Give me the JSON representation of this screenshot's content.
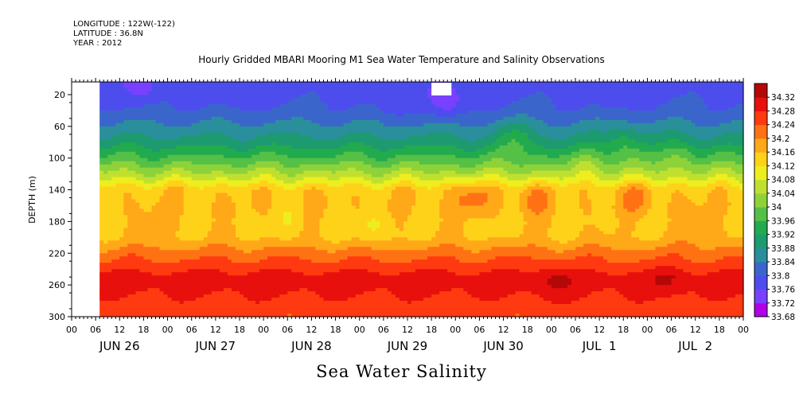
{
  "header": {
    "longitude": "LONGITUDE : 122W(-122)",
    "latitude": "LATITUDE : 36.8N",
    "year": "YEAR : 2012"
  },
  "chart_data": {
    "type": "heatmap",
    "title": "Hourly Gridded MBARI Mooring M1 Sea Water Temperature and Salinity Observations",
    "caption": "Sea Water Salinity",
    "ylabel": "DEPTH (m)",
    "ylim": [
      300,
      4
    ],
    "y_inverted": true,
    "y_ticks": [
      20,
      60,
      100,
      140,
      180,
      220,
      260,
      300
    ],
    "x_range_hours": [
      0,
      168
    ],
    "x_hour_ticks": [
      "00",
      "06",
      "12",
      "18",
      "00",
      "06",
      "12",
      "18",
      "00",
      "06",
      "12",
      "18",
      "00",
      "06",
      "12",
      "18",
      "00",
      "06",
      "12",
      "18",
      "00",
      "06",
      "12",
      "18",
      "00",
      "06",
      "12",
      "18",
      "00"
    ],
    "x_day_labels": [
      "JUN 26",
      "JUN 27",
      "JUN 28",
      "JUN 29",
      "JUN 30",
      "JUL  1",
      "JUL  2"
    ],
    "data_start_hour": 7,
    "missing_patch": {
      "hours": [
        90,
        95
      ],
      "depth": [
        4,
        20
      ]
    },
    "colorbar": {
      "levels": [
        33.68,
        33.72,
        33.76,
        33.8,
        33.84,
        33.88,
        33.92,
        33.96,
        34,
        34.04,
        34.08,
        34.12,
        34.16,
        34.2,
        34.24,
        34.28,
        34.32
      ],
      "level_labels": [
        "33.68",
        "33.72",
        "33.76",
        "33.8",
        "33.84",
        "33.88",
        "33.92",
        "33.96",
        "34",
        "34.04",
        "34.08",
        "34.12",
        "34.16",
        "34.2",
        "34.24",
        "34.28",
        "34.32"
      ],
      "colors": [
        "#b000e8",
        "#7a40ff",
        "#4d4dee",
        "#3a66cc",
        "#2a8f9c",
        "#1d9a70",
        "#22aa4e",
        "#55c046",
        "#8ed23a",
        "#c0e030",
        "#eeee1e",
        "#ffd21a",
        "#ffa818",
        "#ff7214",
        "#ff3a10",
        "#e8100c",
        "#b40808"
      ]
    },
    "depth_profile": {
      "depths": [
        4,
        20,
        40,
        60,
        80,
        100,
        120,
        130,
        140,
        160,
        180,
        200,
        220,
        240,
        250,
        260,
        280,
        300
      ],
      "salinity": [
        33.78,
        33.79,
        33.81,
        33.85,
        33.9,
        33.97,
        34.05,
        34.1,
        34.15,
        34.16,
        34.15,
        34.16,
        34.22,
        34.27,
        34.3,
        34.3,
        34.27,
        34.25
      ]
    },
    "anomalies": [
      {
        "hour": 94,
        "depth": 30,
        "delta": -0.07
      },
      {
        "hour": 80,
        "depth": 28,
        "delta": -0.04
      },
      {
        "hour": 18,
        "depth": 12,
        "delta": -0.04
      },
      {
        "hour": 40,
        "depth": 18,
        "delta": -0.03
      },
      {
        "hour": 135,
        "depth": 20,
        "delta": -0.03
      },
      {
        "hour": 111,
        "depth": 75,
        "delta": 0.06
      },
      {
        "hour": 138,
        "depth": 80,
        "delta": 0.05
      },
      {
        "hour": 152,
        "depth": 95,
        "delta": 0.04
      },
      {
        "hour": 130,
        "depth": 110,
        "delta": 0.04
      },
      {
        "hour": 100,
        "depth": 150,
        "delta": 0.06
      },
      {
        "hour": 115,
        "depth": 150,
        "delta": 0.05
      },
      {
        "hour": 142,
        "depth": 150,
        "delta": 0.05
      },
      {
        "hour": 75,
        "depth": 190,
        "delta": -0.04
      },
      {
        "hour": 55,
        "depth": 180,
        "delta": -0.02
      },
      {
        "hour": 157,
        "depth": 190,
        "delta": 0.04
      },
      {
        "hour": 20,
        "depth": 180,
        "delta": 0.02
      },
      {
        "hour": 120,
        "depth": 255,
        "delta": 0.03
      },
      {
        "hour": 150,
        "depth": 255,
        "delta": 0.02
      }
    ]
  }
}
